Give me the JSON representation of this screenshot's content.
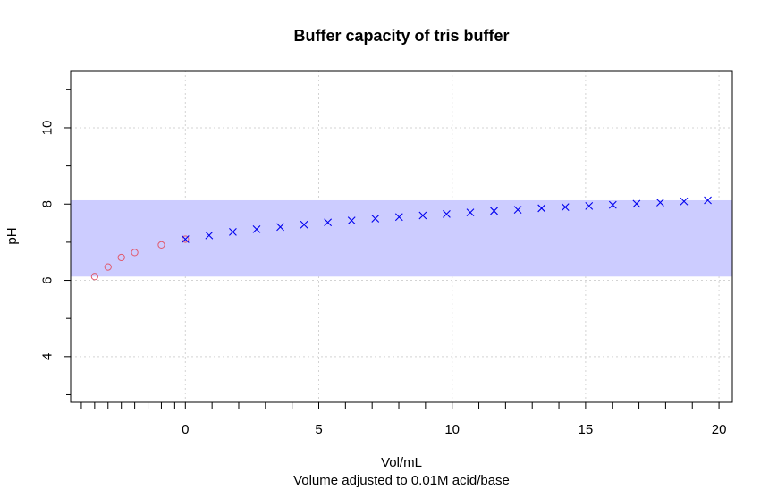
{
  "chart_data": {
    "type": "scatter",
    "title": "Buffer capacity of tris buffer",
    "xlabel": "Vol/mL",
    "xlabel_sub": "Volume adjusted to 0.01M acid/base",
    "ylabel": "pH",
    "xlim": [
      -4.3,
      20.5
    ],
    "ylim": [
      2.8,
      11.5
    ],
    "x_ticks": [
      0,
      5,
      10,
      15,
      20
    ],
    "x_tick_labels": [
      "0",
      "5",
      "10",
      "15",
      "20"
    ],
    "x_minor_ticks": [
      -3.9,
      -3.4,
      -2.9,
      -2.4,
      -1.9,
      -1.4,
      -0.9,
      -0.4
    ],
    "y_ticks": [
      4,
      6,
      8,
      10
    ],
    "y_tick_labels": [
      "4",
      "6",
      "8",
      "10"
    ],
    "y_minor_ticks": [
      3,
      5,
      7,
      9,
      11
    ],
    "grid": true,
    "buffer_band": {
      "ymin": 6.1,
      "ymax": 8.1,
      "color": "#ccccff"
    },
    "series": [
      {
        "marker": "circle",
        "color": "#e05a6e",
        "x": [
          -3.4,
          -2.9,
          -2.4,
          -1.9,
          -0.9,
          0.0
        ],
        "y": [
          6.1,
          6.35,
          6.6,
          6.73,
          6.93,
          7.08
        ]
      },
      {
        "marker": "cross",
        "color": "#0000ee",
        "x": [
          0.0,
          0.89,
          1.78,
          2.67,
          3.56,
          4.45,
          5.34,
          6.23,
          7.12,
          8.01,
          8.9,
          9.79,
          10.68,
          11.57,
          12.46,
          13.35,
          14.24,
          15.13,
          16.02,
          16.91,
          17.8,
          18.69,
          19.58
        ],
        "y": [
          7.08,
          7.18,
          7.27,
          7.34,
          7.4,
          7.46,
          7.52,
          7.57,
          7.62,
          7.66,
          7.7,
          7.74,
          7.78,
          7.82,
          7.85,
          7.89,
          7.92,
          7.95,
          7.98,
          8.01,
          8.04,
          8.07,
          8.1
        ]
      }
    ]
  }
}
